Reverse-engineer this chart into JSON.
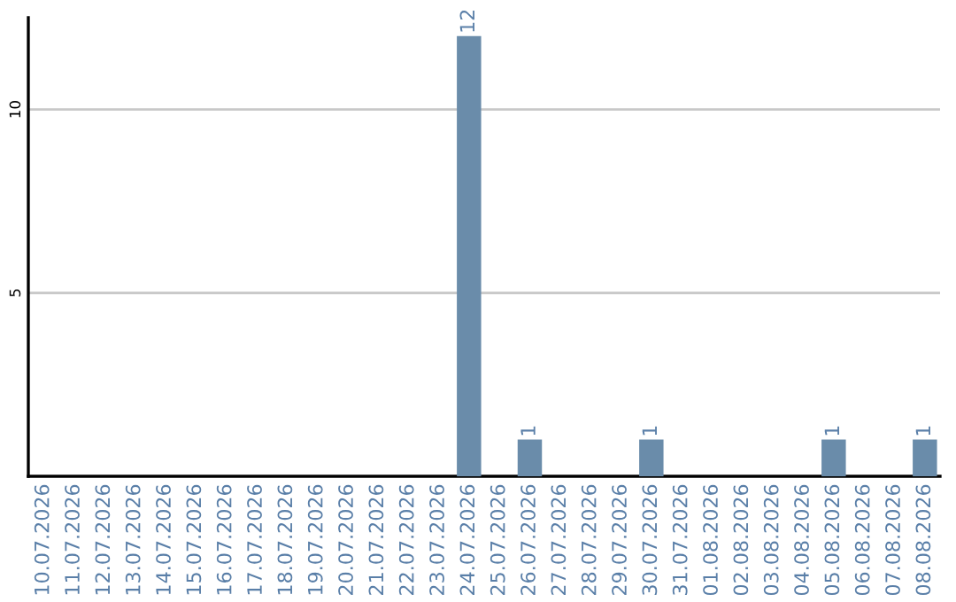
{
  "chart_data": {
    "type": "bar",
    "categories": [
      "10.07.2026",
      "11.07.2026",
      "12.07.2026",
      "13.07.2026",
      "14.07.2026",
      "15.07.2026",
      "16.07.2026",
      "17.07.2026",
      "18.07.2026",
      "19.07.2026",
      "20.07.2026",
      "21.07.2026",
      "22.07.2026",
      "23.07.2026",
      "24.07.2026",
      "25.07.2026",
      "26.07.2026",
      "27.07.2026",
      "28.07.2026",
      "29.07.2026",
      "30.07.2026",
      "31.07.2026",
      "01.08.2026",
      "02.08.2026",
      "03.08.2026",
      "04.08.2026",
      "05.08.2026",
      "06.08.2026",
      "07.08.2026",
      "08.08.2026"
    ],
    "values": [
      0,
      0,
      0,
      0,
      0,
      0,
      0,
      0,
      0,
      0,
      0,
      0,
      0,
      0,
      12,
      0,
      1,
      0,
      0,
      0,
      1,
      0,
      0,
      0,
      0,
      0,
      1,
      0,
      0,
      1
    ],
    "value_labels": [
      null,
      null,
      null,
      null,
      null,
      null,
      null,
      null,
      null,
      null,
      null,
      null,
      null,
      null,
      "12",
      null,
      "1",
      null,
      null,
      null,
      "1",
      null,
      null,
      null,
      null,
      null,
      "1",
      null,
      null,
      "1"
    ],
    "color": "#6a8caa",
    "ylim": [
      0,
      12.5
    ],
    "yticks": [
      5,
      10
    ],
    "grid": "y"
  }
}
